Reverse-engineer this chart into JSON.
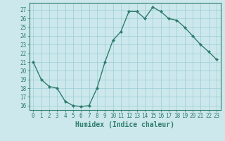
{
  "xlabel": "Humidex (Indice chaleur)",
  "ylabel": "",
  "x": [
    0,
    1,
    2,
    3,
    4,
    5,
    6,
    7,
    8,
    9,
    10,
    11,
    12,
    13,
    14,
    15,
    16,
    17,
    18,
    19,
    20,
    21,
    22,
    23
  ],
  "y": [
    21,
    19,
    18.2,
    18,
    16.5,
    16,
    15.9,
    16,
    18,
    21,
    23.5,
    24.5,
    26.8,
    26.8,
    26,
    27.3,
    26.8,
    26,
    25.8,
    25,
    24,
    23,
    22.2,
    21.3
  ],
  "line_color": "#2E7D6B",
  "marker": "D",
  "marker_size": 2.0,
  "background_color": "#cce8ec",
  "grid_color": "#99cdd4",
  "ylim": [
    15.5,
    27.8
  ],
  "xlim": [
    -0.5,
    23.5
  ],
  "yticks": [
    16,
    17,
    18,
    19,
    20,
    21,
    22,
    23,
    24,
    25,
    26,
    27
  ],
  "xticks": [
    0,
    1,
    2,
    3,
    4,
    5,
    6,
    7,
    8,
    9,
    10,
    11,
    12,
    13,
    14,
    15,
    16,
    17,
    18,
    19,
    20,
    21,
    22,
    23
  ],
  "tick_color": "#2E7D6B",
  "axis_color": "#2E7D6B",
  "tick_fontsize": 5.5,
  "xlabel_fontsize": 7.0,
  "linewidth": 1.0
}
